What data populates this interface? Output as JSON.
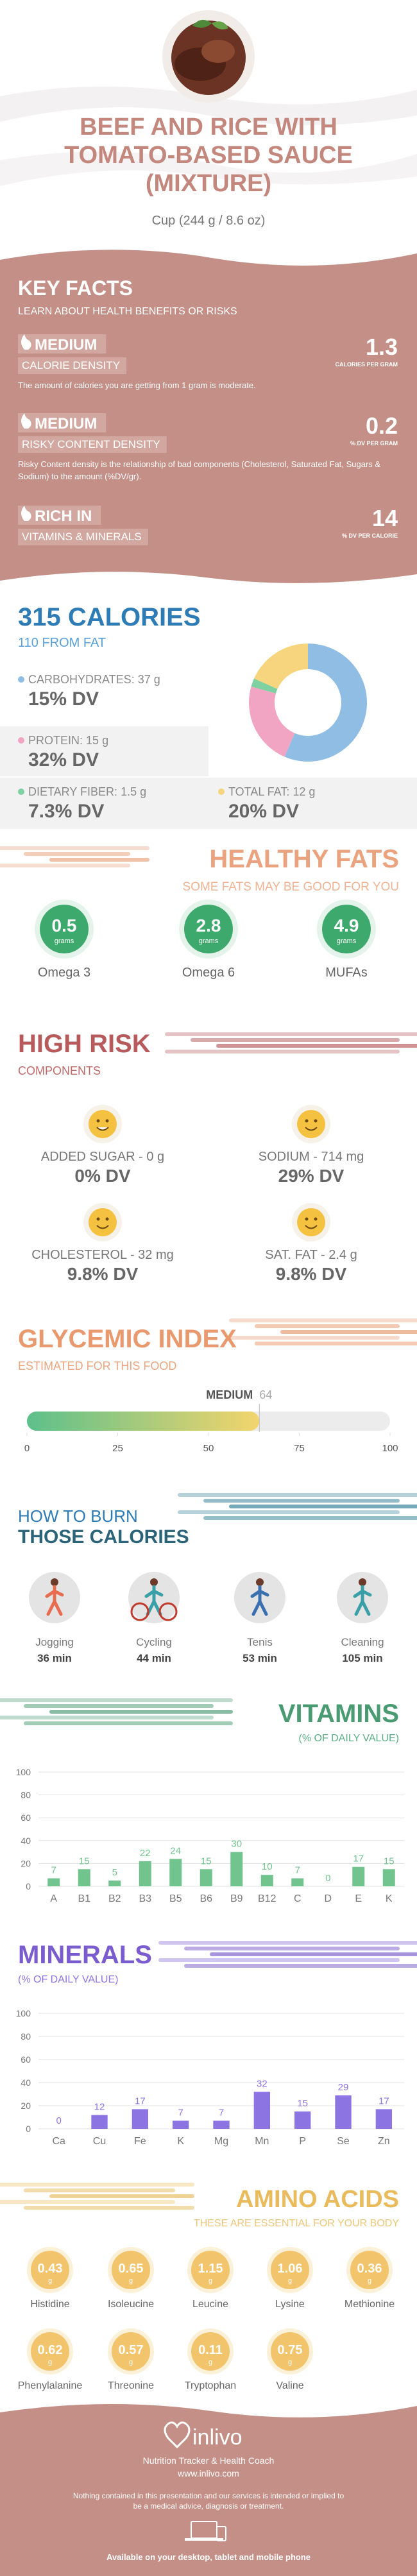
{
  "header": {
    "title": "BEEF AND RICE WITH TOMATO-BASED SAUCE (MIXTURE)",
    "serving": "Cup (244 g / 8.6 oz)"
  },
  "key_facts": {
    "title": "KEY FACTS",
    "subtitle": "LEARN ABOUT HEALTH BENEFITS OR RISKS",
    "items": [
      {
        "level": "MEDIUM",
        "name": "CALORIE DENSITY",
        "value": 1.3,
        "unit": "CALORIES PER GRAM",
        "description": "The amount of calories you are getting from 1 gram is moderate."
      },
      {
        "level": "MEDIUM",
        "name": "RISKY CONTENT DENSITY",
        "value": 0.2,
        "unit": "% DV PER GRAM",
        "description": "Risky Content density is the relationship of bad components (Cholesterol, Saturated Fat, Sugars & Sodium) to the amount (%DV/gr)."
      },
      {
        "level": "RICH IN",
        "name": "VITAMINS & MINERALS",
        "value": 14,
        "unit": "% DV PER CALORIE"
      }
    ]
  },
  "calories": {
    "title": "315 CALORIES",
    "subtitle": "110 FROM FAT",
    "nutrients": [
      {
        "name": "CARBOHYDRATES:",
        "amount": 37,
        "unit": "g",
        "dv": "15% DV",
        "color": "#8fbde4"
      },
      {
        "name": "PROTEIN:",
        "amount": 15,
        "unit": "g",
        "dv": "32% DV",
        "color": "#f2a5c2"
      },
      {
        "name": "DIETARY FIBER:",
        "amount": 1.5,
        "unit": "g",
        "dv": "7.3% DV",
        "color": "#7fd1a2"
      },
      {
        "name": "TOTAL FAT:",
        "amount": 12,
        "unit": "g",
        "dv": "20% DV",
        "color": "#f7d57e"
      }
    ]
  },
  "healthy_fats": {
    "title": "HEALTHY FATS",
    "subtitle": "SOME FATS MAY BE GOOD FOR YOU",
    "unit": "grams",
    "color": "#3ea96c",
    "items": [
      {
        "name": "Omega 3",
        "value": 0.5
      },
      {
        "name": "Omega 6",
        "value": 2.8
      },
      {
        "name": "MUFAs",
        "value": 4.9
      }
    ]
  },
  "high_risk": {
    "title": "HIGH RISK",
    "subtitle": "COMPONENTS",
    "items": [
      {
        "name": "ADDED SUGAR - 0 g",
        "dv": "0% DV"
      },
      {
        "name": "SODIUM - 714 mg",
        "dv": "29% DV"
      },
      {
        "name": "CHOLESTEROL - 32 mg",
        "dv": "9.8% DV"
      },
      {
        "name": "SAT. FAT - 2.4 g",
        "dv": "9.8% DV"
      }
    ]
  },
  "glycemic_index": {
    "title": "GLYCEMIC INDEX",
    "subtitle": "ESTIMATED FOR THIS FOOD",
    "level": "MEDIUM",
    "value": 64,
    "xlim": [
      0,
      100
    ],
    "xticks": [
      0,
      25,
      50,
      75,
      100
    ]
  },
  "burn": {
    "title": "HOW TO BURN",
    "subtitle": "THOSE CALORIES",
    "activities": [
      {
        "name": "Jogging",
        "time": "36 min"
      },
      {
        "name": "Cycling",
        "time": "44 min"
      },
      {
        "name": "Tenis",
        "time": "53 min"
      },
      {
        "name": "Cleaning",
        "time": "105 min"
      }
    ]
  },
  "chart_data": [
    {
      "type": "bar",
      "title": "VITAMINS",
      "subtitle": "(% OF DAILY VALUE)",
      "categories": [
        "A",
        "B1",
        "B2",
        "B3",
        "B5",
        "B6",
        "B9",
        "B12",
        "C",
        "D",
        "E",
        "K"
      ],
      "values": [
        7,
        15,
        5,
        22,
        24,
        15,
        30,
        10,
        7,
        0,
        17,
        15
      ],
      "ylim": [
        0,
        100
      ],
      "yticks": [
        0,
        20,
        40,
        60,
        80,
        100
      ],
      "color": "#72c48f",
      "grid": true
    },
    {
      "type": "bar",
      "title": "MINERALS",
      "subtitle": "(% OF DAILY VALUE)",
      "categories": [
        "Ca",
        "Cu",
        "Fe",
        "K",
        "Mg",
        "Mn",
        "P",
        "Se",
        "Zn"
      ],
      "values": [
        0,
        12,
        17,
        7,
        7,
        32,
        15,
        29,
        17
      ],
      "ylim": [
        0,
        100
      ],
      "yticks": [
        0,
        20,
        40,
        60,
        80,
        100
      ],
      "color": "#8c74e2",
      "grid": true
    }
  ],
  "amino_acids": {
    "title": "AMINO ACIDS",
    "subtitle": "THESE ARE ESSENTIAL FOR YOUR BODY",
    "unit": "g",
    "items": [
      {
        "name": "Histidine",
        "value": 0.43
      },
      {
        "name": "Isoleucine",
        "value": 0.65
      },
      {
        "name": "Leucine",
        "value": 1.15
      },
      {
        "name": "Lysine",
        "value": 1.06
      },
      {
        "name": "Methionine",
        "value": 0.36
      },
      {
        "name": "Phenylalanine",
        "value": 0.62
      },
      {
        "name": "Threonine",
        "value": 0.57
      },
      {
        "name": "Tryptophan",
        "value": 0.11
      },
      {
        "name": "Valine",
        "value": 0.75
      }
    ]
  },
  "footer": {
    "brand": "inlivo",
    "tagline": "Nutrition Tracker & Health Coach",
    "url": "www.inlivo.com",
    "disclaimer": "Nothing contained in this presentation and our services is intended or implied to be a medical advice, diagnosis or treatment.",
    "availability": "Available on your desktop, tablet and mobile phone"
  }
}
